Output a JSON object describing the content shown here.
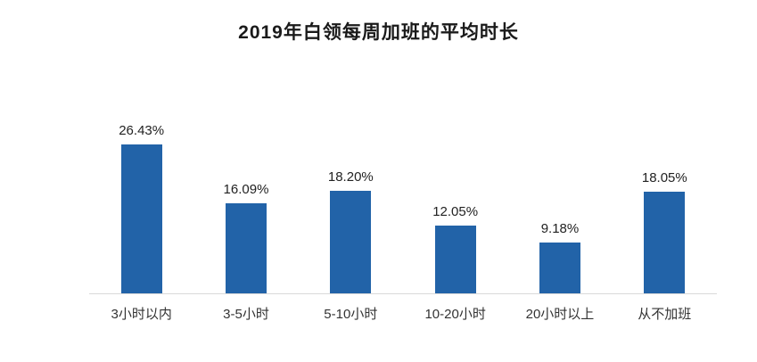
{
  "chart_data": {
    "type": "bar",
    "title": "2019年白领每周加班的平均时长",
    "categories": [
      "3小时以内",
      "3-5小时",
      "5-10小时",
      "10-20小时",
      "20小时以上",
      "从不加班"
    ],
    "values": [
      26.43,
      16.09,
      18.2,
      12.05,
      9.18,
      18.05
    ],
    "value_labels": [
      "26.43%",
      "16.09%",
      "18.20%",
      "12.05%",
      "9.18%",
      "18.05%"
    ],
    "xlabel": "",
    "ylabel": "",
    "ylim": [
      0,
      28
    ],
    "grid": false,
    "legend_position": "none",
    "bar_color": "#2263a8",
    "axis_line_color": "#d9d9d9",
    "background_color": "#ffffff"
  }
}
